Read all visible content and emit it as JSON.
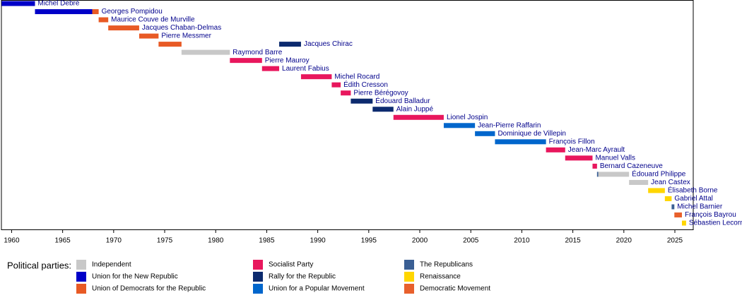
{
  "chart_data": {
    "type": "timeline",
    "xlim": [
      1959,
      2026.8
    ],
    "xticks": [
      1960,
      1965,
      1970,
      1975,
      1980,
      1985,
      1990,
      1995,
      2000,
      2005,
      2010,
      2015,
      2020,
      2025
    ],
    "legend_title": "Political parties:",
    "parties": [
      {
        "name": "Independent",
        "color": "#c8c8c8"
      },
      {
        "name": "Union for the New Republic",
        "color": "#0000c8"
      },
      {
        "name": "Union of Democrats for the Republic",
        "color": "#e85a25"
      },
      {
        "name": "Socialist Party",
        "color": "#e8175d"
      },
      {
        "name": "Rally for the Republic",
        "color": "#0c2a6e"
      },
      {
        "name": "Union for a Popular Movement",
        "color": "#0066cc"
      },
      {
        "name": "The Republicans",
        "color": "#3a5f94"
      },
      {
        "name": "Renaissance",
        "color": "#ffd600"
      },
      {
        "name": "Democratic Movement",
        "color": "#e8602c"
      }
    ],
    "rows": [
      {
        "name": "Michel Debré",
        "segments": [
          {
            "start": 1959.02,
            "end": 1962.29,
            "party": "Union for the New Republic"
          }
        ]
      },
      {
        "name": "Georges Pompidou",
        "segments": [
          {
            "start": 1962.29,
            "end": 1967.9,
            "party": "Union for the New Republic"
          },
          {
            "start": 1967.9,
            "end": 1968.53,
            "party": "Union of Democrats for the Republic"
          }
        ]
      },
      {
        "name": "Maurice Couve de Murville",
        "segments": [
          {
            "start": 1968.53,
            "end": 1969.47,
            "party": "Union of Democrats for the Republic"
          }
        ]
      },
      {
        "name": "Jacques Chaban-Delmas",
        "segments": [
          {
            "start": 1969.47,
            "end": 1972.5,
            "party": "Union of Democrats for the Republic"
          }
        ]
      },
      {
        "name": "Pierre Messmer",
        "segments": [
          {
            "start": 1972.5,
            "end": 1974.4,
            "party": "Union of Democrats for the Republic"
          }
        ]
      },
      {
        "name": "Jacques Chirac",
        "segments": [
          {
            "start": 1974.4,
            "end": 1976.65,
            "party": "Union of Democrats for the Republic"
          },
          {
            "start": 1986.22,
            "end": 1988.36,
            "party": "Rally for the Republic"
          }
        ]
      },
      {
        "name": "Raymond Barre",
        "segments": [
          {
            "start": 1976.65,
            "end": 1981.39,
            "party": "Independent"
          }
        ]
      },
      {
        "name": "Pierre Mauroy",
        "segments": [
          {
            "start": 1981.39,
            "end": 1984.54,
            "party": "Socialist Party"
          }
        ]
      },
      {
        "name": "Laurent Fabius",
        "segments": [
          {
            "start": 1984.54,
            "end": 1986.22,
            "party": "Socialist Party"
          }
        ]
      },
      {
        "name": "Michel Rocard",
        "segments": [
          {
            "start": 1988.36,
            "end": 1991.37,
            "party": "Socialist Party"
          }
        ]
      },
      {
        "name": "Édith Cresson",
        "segments": [
          {
            "start": 1991.37,
            "end": 1992.25,
            "party": "Socialist Party"
          }
        ]
      },
      {
        "name": "Pierre Bérégovoy",
        "segments": [
          {
            "start": 1992.25,
            "end": 1993.24,
            "party": "Socialist Party"
          }
        ]
      },
      {
        "name": "Édouard Balladur",
        "segments": [
          {
            "start": 1993.24,
            "end": 1995.38,
            "party": "Rally for the Republic"
          }
        ]
      },
      {
        "name": "Alain Juppé",
        "segments": [
          {
            "start": 1995.38,
            "end": 1997.42,
            "party": "Rally for the Republic"
          }
        ]
      },
      {
        "name": "Lionel Jospin",
        "segments": [
          {
            "start": 1997.42,
            "end": 2002.35,
            "party": "Socialist Party"
          }
        ]
      },
      {
        "name": "Jean-Pierre Raffarin",
        "segments": [
          {
            "start": 2002.35,
            "end": 2005.41,
            "party": "Union for a Popular Movement"
          }
        ]
      },
      {
        "name": "Dominique de Villepin",
        "segments": [
          {
            "start": 2005.41,
            "end": 2007.37,
            "party": "Union for a Popular Movement"
          }
        ]
      },
      {
        "name": "François Fillon",
        "segments": [
          {
            "start": 2007.37,
            "end": 2012.37,
            "party": "Union for a Popular Movement"
          }
        ]
      },
      {
        "name": "Jean-Marc Ayrault",
        "segments": [
          {
            "start": 2012.37,
            "end": 2014.25,
            "party": "Socialist Party"
          }
        ]
      },
      {
        "name": "Manuel Valls",
        "segments": [
          {
            "start": 2014.25,
            "end": 2016.93,
            "party": "Socialist Party"
          }
        ]
      },
      {
        "name": "Bernard Cazeneuve",
        "segments": [
          {
            "start": 2016.93,
            "end": 2017.37,
            "party": "Socialist Party"
          }
        ]
      },
      {
        "name": "Édouard Philippe",
        "segments": [
          {
            "start": 2017.37,
            "end": 2017.5,
            "party": "The Republicans"
          },
          {
            "start": 2017.5,
            "end": 2020.51,
            "party": "Independent"
          }
        ]
      },
      {
        "name": "Jean Castex",
        "segments": [
          {
            "start": 2020.51,
            "end": 2022.38,
            "party": "Independent"
          }
        ]
      },
      {
        "name": "Élisabeth Borne",
        "segments": [
          {
            "start": 2022.38,
            "end": 2024.02,
            "party": "Renaissance"
          }
        ]
      },
      {
        "name": "Gabriel Attal",
        "segments": [
          {
            "start": 2024.02,
            "end": 2024.68,
            "party": "Renaissance"
          }
        ]
      },
      {
        "name": "Michel Barnier",
        "segments": [
          {
            "start": 2024.68,
            "end": 2024.95,
            "party": "The Republicans"
          }
        ]
      },
      {
        "name": "François Bayrou",
        "segments": [
          {
            "start": 2024.95,
            "end": 2025.69,
            "party": "Democratic Movement"
          }
        ]
      },
      {
        "name": "Sébastien Lecornu",
        "segments": [
          {
            "start": 2025.69,
            "end": 2026.1,
            "party": "Renaissance"
          }
        ]
      }
    ]
  }
}
